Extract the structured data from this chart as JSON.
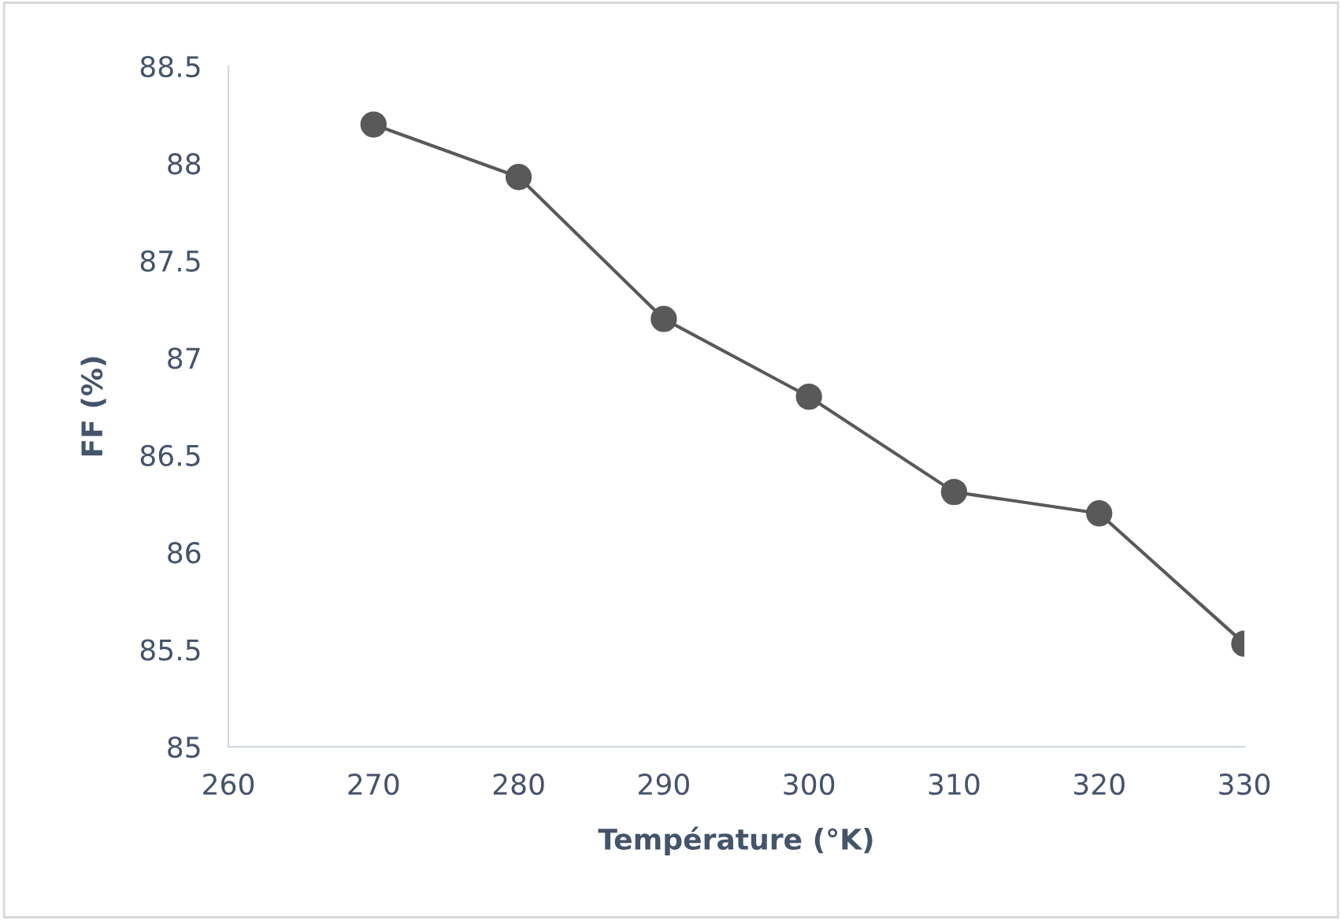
{
  "chart_data": {
    "type": "line",
    "xlabel": "Température (°K)",
    "ylabel": "FF (%)",
    "x": [
      270,
      280,
      290,
      300,
      310,
      320,
      330
    ],
    "series": [
      {
        "color": "#595959",
        "values": [
          88.2,
          87.93,
          87.2,
          86.8,
          86.31,
          86.2,
          85.53
        ]
      }
    ],
    "xlim": [
      260,
      330
    ],
    "xticks": [
      260,
      270,
      280,
      290,
      300,
      310,
      320,
      330
    ],
    "ylim": [
      85,
      88.5
    ],
    "yticks": [
      85,
      85.5,
      86,
      86.5,
      87,
      87.5,
      88,
      88.5
    ],
    "marker": "circle",
    "line_style": "solid",
    "grid": false
  }
}
